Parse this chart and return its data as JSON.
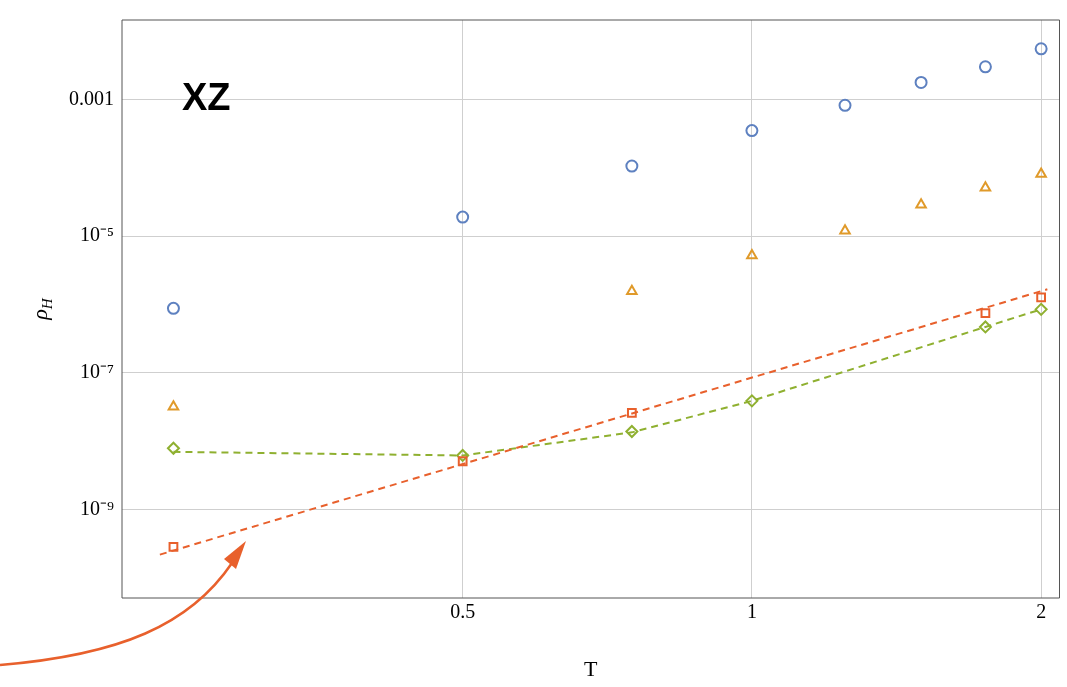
{
  "chart_data": {
    "type": "scatter",
    "xlabel": "T",
    "ylabel": "ρ$_{H}$",
    "log": "xy",
    "grid": true,
    "legend": false,
    "annotations": [
      "XZ"
    ],
    "xlim": [
      0.221,
      2.09
    ],
    "xticks": [
      0.5,
      1,
      2
    ],
    "ylim": [
      5.1e-11,
      0.0145
    ],
    "yticks": [
      {
        "value": 0.001,
        "label": "0.001"
      },
      {
        "value": 1e-05,
        "label": "10⁻⁵"
      },
      {
        "value": 1e-07,
        "label": "10⁻⁷"
      },
      {
        "value": 1e-09,
        "label": "10⁻⁹"
      }
    ],
    "x": [
      0.25,
      0.5,
      0.75,
      1,
      1.25,
      1.5,
      1.75,
      2
    ],
    "series": [
      {
        "color": "#5e81c0",
        "marker": "circle",
        "values": [
          8.8e-07,
          1.9e-05,
          0.000106,
          0.00035,
          0.00082,
          0.00177,
          0.003,
          0.0055
        ]
      },
      {
        "color": "#e09a2a",
        "marker": "triangle",
        "values": [
          3.2e-08,
          null,
          1.56e-06,
          5.2e-06,
          1.2e-05,
          2.87e-05,
          5.1e-05,
          8.1e-05
        ]
      },
      {
        "color": "#e8602c",
        "marker": "square",
        "values": [
          2.85e-10,
          5.1e-09,
          2.6e-08,
          null,
          null,
          null,
          7.5e-07,
          1.27e-06
        ]
      },
      {
        "color": "#8fb030",
        "marker": "diamond",
        "values": [
          7.9e-09,
          6.2e-09,
          1.39e-08,
          3.9e-08,
          null,
          null,
          4.7e-07,
          8.5e-07
        ]
      },
      {
        "type": "line",
        "color": "#e8602c",
        "line_style": "dashed",
        "x": [
          0.242,
          2.03
        ],
        "values": [
          2.2e-10,
          1.67e-06
        ]
      },
      {
        "type": "line",
        "color": "#8fb030",
        "line_style": "dashed",
        "x": [
          0.25,
          0.5,
          0.75,
          1,
          1.75,
          2
        ],
        "values": [
          7e-09,
          6.2e-09,
          1.35e-08,
          3.9e-08,
          4.7e-07,
          8.5e-07
        ]
      }
    ]
  }
}
